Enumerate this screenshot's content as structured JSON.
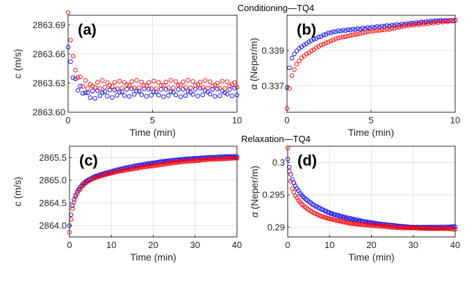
{
  "titles": {
    "top": "Conditioning—TQ4",
    "bottom": "Relaxation—TQ4"
  },
  "colors": {
    "series1": "#0000ff",
    "series2": "#ff0000"
  },
  "chart_data": [
    {
      "id": "a",
      "type": "scatter",
      "panel_label": "(a)",
      "xlabel": "Time (min)",
      "ylabel_var": "c",
      "ylabel_unit": " (m/s)",
      "xlim": [
        0,
        10
      ],
      "ylim": [
        2863.6,
        2863.7
      ],
      "grid": true,
      "xticks": [
        0,
        5,
        10
      ],
      "xtick_labels": [
        "0",
        "5",
        "10"
      ],
      "yticks": [
        2863.6,
        2863.63,
        2863.66,
        2863.69
      ],
      "ytick_labels": [
        "2863.60",
        "2863.63",
        "2863.66",
        "2863.69"
      ],
      "series": [
        {
          "color": "#0000ff",
          "x": [
            0,
            0.1,
            0.2,
            0.3,
            0.4,
            0.5,
            0.7,
            0.9,
            1.1,
            1.3,
            1.5,
            1.8,
            2.1,
            2.5,
            3,
            3.5,
            4,
            5,
            6,
            7,
            8,
            9,
            10
          ],
          "y": [
            2863.667,
            2863.655,
            2863.645,
            2863.638,
            2863.632,
            2863.628,
            2863.624,
            2863.621,
            2863.619,
            2863.618,
            2863.618,
            2863.619,
            2863.62,
            2863.619,
            2863.62,
            2863.62,
            2863.621,
            2863.62,
            2863.62,
            2863.62,
            2863.621,
            2863.62,
            2863.621
          ]
        },
        {
          "color": "#ff0000",
          "x": [
            0,
            0.1,
            0.2,
            0.3,
            0.4,
            0.5,
            0.7,
            0.9,
            1.1,
            1.3,
            1.5,
            1.8,
            2.1,
            2.5,
            3,
            3.5,
            4,
            5,
            6,
            7,
            8,
            9,
            10
          ],
          "y": [
            2863.699,
            2863.685,
            2863.668,
            2863.655,
            2863.645,
            2863.64,
            2863.634,
            2863.63,
            2863.628,
            2863.627,
            2863.627,
            2863.628,
            2863.629,
            2863.628,
            2863.628,
            2863.629,
            2863.629,
            2863.628,
            2863.629,
            2863.629,
            2863.629,
            2863.628,
            2863.629
          ]
        }
      ]
    },
    {
      "id": "b",
      "type": "scatter",
      "panel_label": "(b)",
      "xlabel": "Time (min)",
      "ylabel_var": "α",
      "ylabel_unit": " (Neper/m)",
      "xlim": [
        0,
        10
      ],
      "ylim": [
        0.3355,
        0.341
      ],
      "grid": true,
      "xticks": [
        0,
        5,
        10
      ],
      "xtick_labels": [
        "0",
        "5",
        "10"
      ],
      "yticks": [
        0.337,
        0.339
      ],
      "ytick_labels": [
        "0.337",
        "0.339"
      ],
      "series": [
        {
          "color": "#0000ff",
          "x": [
            0,
            0.1,
            0.2,
            0.3,
            0.5,
            0.7,
            1,
            1.5,
            2,
            2.5,
            3,
            4,
            5,
            6,
            7,
            8,
            9,
            10
          ],
          "y": [
            0.3369,
            0.3378,
            0.3383,
            0.3386,
            0.3389,
            0.3391,
            0.3393,
            0.3396,
            0.3398,
            0.34,
            0.3401,
            0.3402,
            0.3403,
            0.3404,
            0.3405,
            0.3406,
            0.3407,
            0.3407
          ]
        },
        {
          "color": "#ff0000",
          "x": [
            0,
            0.1,
            0.2,
            0.3,
            0.5,
            0.7,
            1,
            1.5,
            2,
            2.5,
            3,
            4,
            5,
            6,
            7,
            8,
            9,
            10
          ],
          "y": [
            0.3357,
            0.3366,
            0.3372,
            0.3376,
            0.3381,
            0.3384,
            0.3387,
            0.339,
            0.3393,
            0.3395,
            0.3397,
            0.3399,
            0.3401,
            0.3402,
            0.3404,
            0.3405,
            0.3406,
            0.3407
          ]
        }
      ]
    },
    {
      "id": "c",
      "type": "scatter",
      "panel_label": "(c)",
      "xlabel": "Time (min)",
      "ylabel_var": "c",
      "ylabel_unit": " (m/s)",
      "xlim": [
        0,
        40
      ],
      "ylim": [
        2863.75,
        2865.75
      ],
      "grid": true,
      "xticks": [
        0,
        10,
        20,
        30,
        40
      ],
      "xtick_labels": [
        "0",
        "10",
        "20",
        "30",
        "40"
      ],
      "yticks": [
        2864.0,
        2864.5,
        2865.0,
        2865.5
      ],
      "ytick_labels": [
        "2864.0",
        "2864.5",
        "2865.0",
        "2865.5"
      ],
      "series": [
        {
          "color": "#0000ff",
          "x": [
            0,
            0.3,
            0.6,
            1,
            1.5,
            2,
            3,
            4,
            5,
            6,
            8,
            10,
            12,
            15,
            18,
            20,
            22,
            25,
            28,
            30,
            33,
            36,
            38,
            40
          ],
          "y": [
            2864.0,
            2864.2,
            2864.38,
            2864.55,
            2864.68,
            2864.78,
            2864.9,
            2864.98,
            2865.03,
            2865.08,
            2865.14,
            2865.19,
            2865.24,
            2865.3,
            2865.35,
            2865.38,
            2865.41,
            2865.44,
            2865.47,
            2865.48,
            2865.5,
            2865.51,
            2865.52,
            2865.52
          ]
        },
        {
          "color": "#ff0000",
          "x": [
            0,
            0.3,
            0.6,
            1,
            1.5,
            2,
            3,
            4,
            5,
            6,
            8,
            10,
            12,
            15,
            18,
            20,
            22,
            25,
            28,
            30,
            33,
            36,
            38,
            40
          ],
          "y": [
            2863.85,
            2864.1,
            2864.3,
            2864.5,
            2864.64,
            2864.74,
            2864.87,
            2864.95,
            2865.01,
            2865.05,
            2865.11,
            2865.16,
            2865.2,
            2865.25,
            2865.3,
            2865.32,
            2865.35,
            2865.39,
            2865.42,
            2865.43,
            2865.46,
            2865.47,
            2865.48,
            2865.49
          ]
        }
      ]
    },
    {
      "id": "d",
      "type": "scatter",
      "panel_label": "(d)",
      "xlabel": "Time (min)",
      "ylabel_var": "α",
      "ylabel_unit": " (Neper/m)",
      "xlim": [
        0,
        40
      ],
      "ylim": [
        0.2885,
        0.3025
      ],
      "grid": true,
      "xticks": [
        0,
        10,
        20,
        30,
        40
      ],
      "xtick_labels": [
        "0",
        "10",
        "20",
        "30",
        "40"
      ],
      "yticks": [
        0.29,
        0.295,
        0.3
      ],
      "ytick_labels": [
        "0.29",
        "0.295",
        "0.3"
      ],
      "series": [
        {
          "color": "#0000ff",
          "x": [
            0,
            0.3,
            0.6,
            1,
            1.5,
            2,
            3,
            4,
            5,
            6,
            8,
            10,
            12,
            15,
            18,
            20,
            22,
            25,
            28,
            30,
            33,
            36,
            38,
            40
          ],
          "y": [
            0.3005,
            0.2995,
            0.2985,
            0.2975,
            0.2968,
            0.2962,
            0.2952,
            0.2945,
            0.294,
            0.2935,
            0.2928,
            0.2922,
            0.2918,
            0.2913,
            0.2909,
            0.2907,
            0.2905,
            0.2903,
            0.2901,
            0.29,
            0.29,
            0.29,
            0.29,
            0.2901
          ]
        },
        {
          "color": "#ff0000",
          "x": [
            0,
            0.3,
            0.6,
            1,
            1.5,
            2,
            3,
            4,
            5,
            6,
            8,
            10,
            12,
            15,
            18,
            20,
            22,
            25,
            28,
            30,
            33,
            36,
            38,
            40
          ],
          "y": [
            0.3022,
            0.299,
            0.2975,
            0.2962,
            0.2953,
            0.2947,
            0.2938,
            0.2932,
            0.2927,
            0.2923,
            0.2917,
            0.2913,
            0.291,
            0.2906,
            0.2904,
            0.2903,
            0.2902,
            0.29,
            0.2899,
            0.2899,
            0.2898,
            0.2898,
            0.2898,
            0.2897
          ]
        }
      ]
    }
  ]
}
